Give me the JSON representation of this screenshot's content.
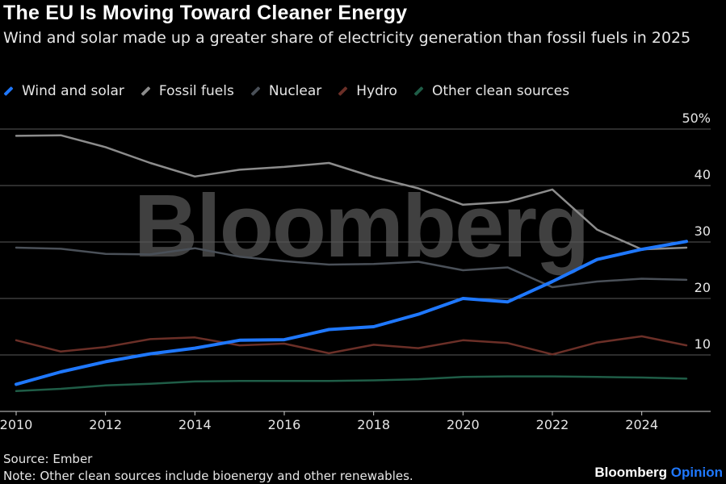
{
  "title": "The EU Is Moving Toward Cleaner Energy",
  "subtitle": "Wind and solar made up a greater share of electricity generation than fossil fuels in 2025",
  "watermark": "Bloomberg",
  "source": "Source: Ember",
  "note": "Note: Other clean sources include bioenergy and other renewables.",
  "brand": {
    "name": "Bloomberg",
    "suffix": "Opinion"
  },
  "chart_data": {
    "type": "line",
    "x": [
      2010,
      2011,
      2012,
      2013,
      2014,
      2015,
      2016,
      2017,
      2018,
      2019,
      2020,
      2021,
      2022,
      2023,
      2024,
      2025
    ],
    "x_ticks": [
      "2010",
      "2012",
      "2014",
      "2016",
      "2018",
      "2020",
      "2022",
      "2024"
    ],
    "xlim": [
      2010,
      2025
    ],
    "ylim": [
      0,
      50
    ],
    "y_ticks": [
      "10",
      "20",
      "30",
      "40",
      "50%"
    ],
    "y_tick_values": [
      10,
      20,
      30,
      40,
      50
    ],
    "grid": true,
    "legend_position": "top",
    "series": [
      {
        "name": "Wind and solar",
        "color": "#1f78ff",
        "values": [
          4.8,
          7.0,
          8.8,
          10.2,
          11.2,
          12.6,
          12.7,
          14.5,
          15.0,
          17.2,
          20.0,
          19.4,
          23.0,
          26.9,
          28.7,
          30.1
        ]
      },
      {
        "name": "Fossil fuels",
        "color": "#8c8c8c",
        "values": [
          48.8,
          48.9,
          46.8,
          44.0,
          41.6,
          42.8,
          43.3,
          44.0,
          41.5,
          39.5,
          36.6,
          37.1,
          39.3,
          32.2,
          28.7,
          29.0
        ]
      },
      {
        "name": "Nuclear",
        "color": "#4a5058",
        "values": [
          29.0,
          28.8,
          27.9,
          27.8,
          28.9,
          27.4,
          26.6,
          26.0,
          26.1,
          26.5,
          25.0,
          25.5,
          22.0,
          23.0,
          23.5,
          23.3
        ]
      },
      {
        "name": "Hydro",
        "color": "#6b2f27",
        "values": [
          12.6,
          10.6,
          11.4,
          12.8,
          13.1,
          11.7,
          12.0,
          10.3,
          11.8,
          11.2,
          12.6,
          12.1,
          10.1,
          12.2,
          13.3,
          11.7
        ]
      },
      {
        "name": "Other clean sources",
        "color": "#1f5d47",
        "values": [
          3.6,
          4.0,
          4.6,
          4.9,
          5.3,
          5.4,
          5.4,
          5.4,
          5.5,
          5.7,
          6.1,
          6.2,
          6.2,
          6.1,
          6.0,
          5.8
        ]
      }
    ]
  }
}
